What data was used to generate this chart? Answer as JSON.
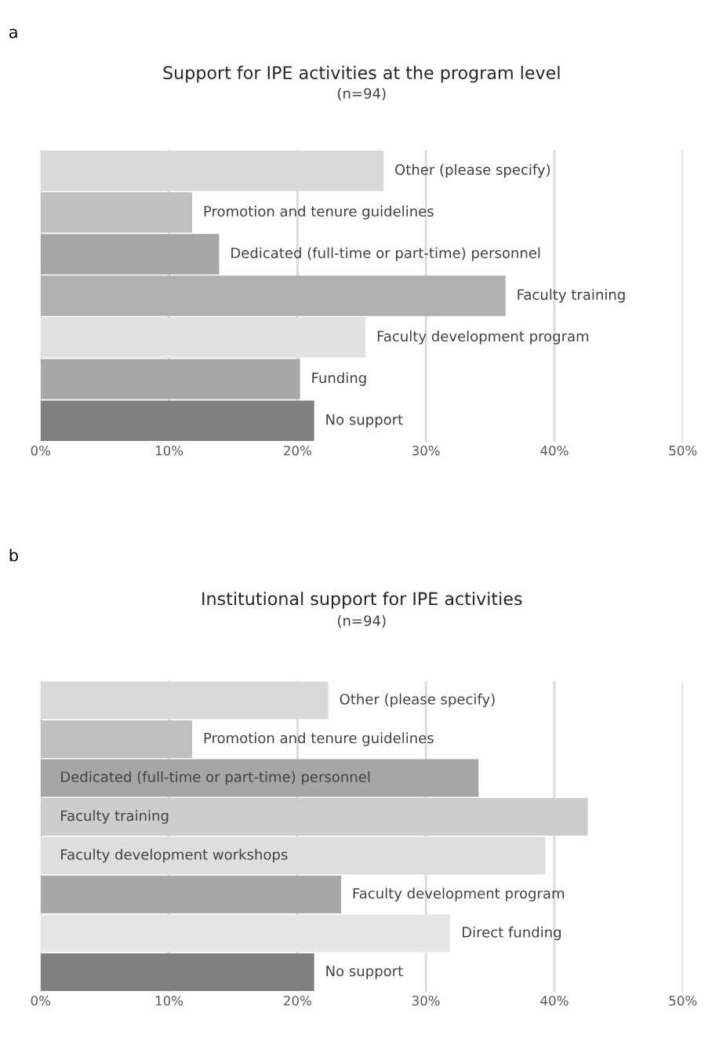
{
  "chart_data": [
    {
      "type": "bar",
      "orientation": "horizontal",
      "title": "Support for IPE activities at the program level",
      "subtitle": "(n=94)",
      "annotations": [
        "a"
      ],
      "categories": [
        "Other (please specify)",
        "Promotion and tenure guidelines",
        "Dedicated (full-time or part-time) personnel",
        "Faculty training",
        "Faculty development program",
        "Funding",
        "No support"
      ],
      "values": [
        26.7,
        11.8,
        13.9,
        36.2,
        25.3,
        20.2,
        21.3
      ],
      "colors": [
        "#d9d9d9",
        "#bfbfbf",
        "#a6a6a6",
        "#b0b0b0",
        "#e2e2e2",
        "#a8a8a8",
        "#808080"
      ],
      "xlim": [
        0,
        50
      ],
      "xticks": [
        {
          "value": 0,
          "label": "0%"
        },
        {
          "value": 10,
          "label": "10%"
        },
        {
          "value": 20,
          "label": "20%"
        },
        {
          "value": 30,
          "label": "30%"
        },
        {
          "value": 40,
          "label": "40%"
        },
        {
          "value": 50,
          "label": "50%"
        }
      ],
      "grid": "x",
      "tick_labels": "x"
    },
    {
      "type": "bar",
      "orientation": "horizontal",
      "title": "Institutional support for IPE activities",
      "subtitle": "(n=94)",
      "annotations": [
        "b"
      ],
      "categories": [
        "Other (please specify)",
        "Promotion and tenure guidelines",
        "Dedicated (full-time or part-time) personnel",
        "Faculty training",
        "Faculty development workshops",
        "Faculty development program",
        "Direct funding",
        "No support"
      ],
      "values": [
        22.4,
        11.8,
        34.1,
        42.6,
        39.3,
        23.4,
        31.9,
        21.3
      ],
      "colors": [
        "#d9d9d9",
        "#bfbfbf",
        "#a6a6a6",
        "#cccccc",
        "#dedede",
        "#a8a8a8",
        "#e6e6e6",
        "#808080"
      ],
      "xlim": [
        0,
        50
      ],
      "xticks": [
        {
          "value": 0,
          "label": "0%"
        },
        {
          "value": 10,
          "label": "10%"
        },
        {
          "value": 20,
          "label": "20%"
        },
        {
          "value": 30,
          "label": "30%"
        },
        {
          "value": 40,
          "label": "40%"
        },
        {
          "value": 50,
          "label": "50%"
        }
      ],
      "grid": "x",
      "tick_labels": "x"
    }
  ]
}
